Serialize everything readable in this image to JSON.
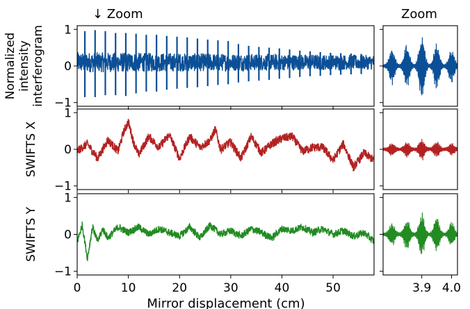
{
  "figure": {
    "main_zoom_label": "↓ Zoom",
    "zoom_title": "Zoom",
    "xlabel": "Mirror displacement (cm)"
  },
  "chart_data": [
    {
      "type": "line",
      "panel": "interferogram-main",
      "ylabel": "Normalized intensity interferogram",
      "ylabel_lines": [
        "Normalized",
        "intensity",
        "interferogram"
      ],
      "color": "#0b4f96",
      "xlim": [
        0,
        58
      ],
      "ylim": [
        -1.1,
        1.1
      ],
      "yticks": [
        "1",
        "0",
        "−1"
      ],
      "baseline": 0.1,
      "envelope_start": 0.28,
      "envelope_end": 0.2,
      "peak_spacing": 2.0,
      "peaks": [
        {
          "x": 1.5,
          "max": 0.95,
          "min": -0.85
        },
        {
          "x": 3.5,
          "max": 0.98,
          "min": -0.85
        },
        {
          "x": 5.5,
          "max": 0.95,
          "min": -0.8
        },
        {
          "x": 7.5,
          "max": 0.9,
          "min": -0.8
        },
        {
          "x": 9.5,
          "max": 0.9,
          "min": -0.82
        },
        {
          "x": 11.5,
          "max": 0.88,
          "min": -0.75
        },
        {
          "x": 13.5,
          "max": 0.85,
          "min": -0.7
        },
        {
          "x": 15.5,
          "max": 0.85,
          "min": -0.7
        },
        {
          "x": 17.5,
          "max": 0.82,
          "min": -0.65
        },
        {
          "x": 19.5,
          "max": 0.8,
          "min": -0.62
        },
        {
          "x": 21.5,
          "max": 0.78,
          "min": -0.6
        },
        {
          "x": 23.5,
          "max": 0.75,
          "min": -0.58
        },
        {
          "x": 25.5,
          "max": 0.72,
          "min": -0.55
        },
        {
          "x": 27.5,
          "max": 0.7,
          "min": -0.52
        },
        {
          "x": 29.5,
          "max": 0.68,
          "min": -0.5
        },
        {
          "x": 31.5,
          "max": 0.6,
          "min": -0.45
        },
        {
          "x": 33.5,
          "max": 0.55,
          "min": -0.42
        },
        {
          "x": 35.5,
          "max": 0.52,
          "min": -0.4
        },
        {
          "x": 37.5,
          "max": 0.5,
          "min": -0.38
        },
        {
          "x": 39.5,
          "max": 0.48,
          "min": -0.35
        },
        {
          "x": 41.5,
          "max": 0.45,
          "min": -0.33
        },
        {
          "x": 43.5,
          "max": 0.42,
          "min": -0.3
        },
        {
          "x": 45.5,
          "max": 0.4,
          "min": -0.28
        },
        {
          "x": 47.5,
          "max": 0.38,
          "min": -0.27
        },
        {
          "x": 49.5,
          "max": 0.36,
          "min": -0.25
        },
        {
          "x": 51.5,
          "max": 0.35,
          "min": -0.24
        },
        {
          "x": 53.5,
          "max": 0.34,
          "min": -0.23
        },
        {
          "x": 55.5,
          "max": 0.33,
          "min": -0.22
        }
      ]
    },
    {
      "type": "line",
      "panel": "swifts-x-main",
      "ylabel": "SWIFTS X",
      "ylabel_lines": [
        "SWIFTS X"
      ],
      "color": "#b22222",
      "xlim": [
        0,
        58
      ],
      "ylim": [
        -1.1,
        1.1
      ],
      "yticks": [
        "1",
        "0",
        "−1"
      ],
      "noise": 0.12,
      "x": [
        0,
        2,
        4,
        6,
        8,
        9,
        10,
        11,
        12,
        14,
        16,
        18,
        20,
        22,
        24,
        26,
        27,
        28,
        30,
        32,
        34,
        36,
        38,
        40,
        42,
        44,
        46,
        48,
        50,
        52,
        54,
        56,
        58
      ],
      "y": [
        -0.05,
        0.15,
        -0.25,
        0.25,
        -0.05,
        0.45,
        0.75,
        0.2,
        -0.15,
        0.35,
        0.05,
        0.4,
        -0.25,
        0.35,
        0.05,
        0.25,
        0.55,
        0.0,
        0.2,
        -0.25,
        0.35,
        -0.1,
        0.15,
        0.3,
        0.35,
        -0.05,
        0.05,
        0.05,
        -0.3,
        0.15,
        -0.5,
        -0.1,
        -0.3
      ]
    },
    {
      "type": "line",
      "panel": "swifts-y-main",
      "ylabel": "SWIFTS Y",
      "ylabel_lines": [
        "SWIFTS Y"
      ],
      "color": "#228b22",
      "xlim": [
        0,
        58
      ],
      "ylim": [
        -1.1,
        1.1
      ],
      "yticks": [
        "1",
        "0",
        "−1"
      ],
      "noise": 0.1,
      "x": [
        0,
        1,
        2,
        3,
        4,
        5,
        6,
        8,
        10,
        12,
        14,
        16,
        18,
        20,
        22,
        24,
        26,
        28,
        30,
        32,
        34,
        36,
        38,
        40,
        42,
        44,
        46,
        48,
        50,
        52,
        54,
        56,
        58
      ],
      "y": [
        -0.2,
        0.25,
        -0.65,
        0.2,
        -0.2,
        0.15,
        -0.1,
        0.2,
        0.05,
        0.2,
        0.0,
        0.15,
        0.05,
        -0.05,
        0.2,
        -0.1,
        0.25,
        0.0,
        0.1,
        -0.05,
        0.15,
        0.05,
        -0.1,
        0.15,
        0.1,
        0.2,
        0.05,
        0.15,
        0.0,
        0.1,
        -0.05,
        0.05,
        -0.2
      ]
    },
    {
      "type": "line",
      "panel": "interferogram-zoom",
      "color": "#0b4f96",
      "xlim": [
        3.77,
        4.02
      ],
      "ylim": [
        -1.1,
        1.1
      ],
      "baseline": 0.0,
      "packets": [
        {
          "x": 3.8,
          "amp": 0.5
        },
        {
          "x": 3.85,
          "amp": 0.6
        },
        {
          "x": 3.9,
          "amp": 0.95
        },
        {
          "x": 3.95,
          "amp": 0.65
        },
        {
          "x": 4.0,
          "amp": 0.45
        }
      ]
    },
    {
      "type": "line",
      "panel": "swifts-x-zoom",
      "color": "#b22222",
      "xlim": [
        3.77,
        4.02
      ],
      "ylim": [
        -1.1,
        1.1
      ],
      "baseline": 0.0,
      "packets": [
        {
          "x": 3.8,
          "amp": 0.15
        },
        {
          "x": 3.85,
          "amp": 0.18
        },
        {
          "x": 3.9,
          "amp": 0.28
        },
        {
          "x": 3.95,
          "amp": 0.2
        },
        {
          "x": 4.0,
          "amp": 0.14
        }
      ]
    },
    {
      "type": "line",
      "panel": "swifts-y-zoom",
      "color": "#228b22",
      "xlim": [
        3.77,
        4.02
      ],
      "xticks": [
        "3.9",
        "4.0"
      ],
      "ylim": [
        -1.1,
        1.1
      ],
      "baseline": 0.0,
      "packets": [
        {
          "x": 3.8,
          "amp": 0.3
        },
        {
          "x": 3.85,
          "amp": 0.4
        },
        {
          "x": 3.9,
          "amp": 0.62
        },
        {
          "x": 3.95,
          "amp": 0.45
        },
        {
          "x": 4.0,
          "amp": 0.3
        }
      ],
      "xtick_values": [
        3.9,
        4.0
      ]
    }
  ],
  "main_xticks": [
    "0",
    "10",
    "20",
    "30",
    "40",
    "50"
  ],
  "main_xtick_values": [
    0,
    10,
    20,
    30,
    40,
    50
  ],
  "ytick_values": [
    1,
    0,
    -1
  ]
}
